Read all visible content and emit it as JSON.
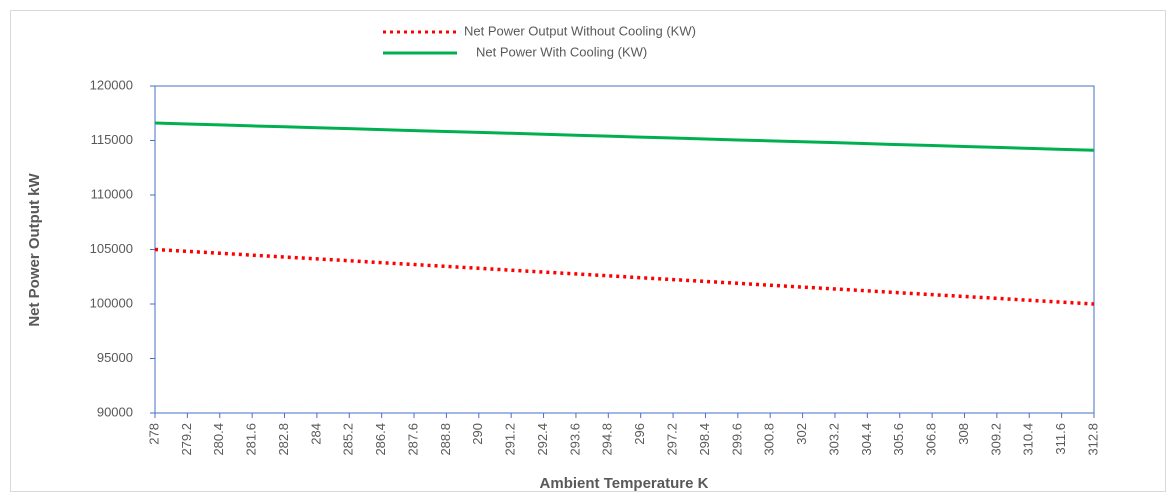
{
  "chart_data": {
    "type": "line",
    "x_label": "Ambient Temperature K",
    "y_label": "Net Power Output  kW",
    "categories": [
      "278",
      "279.2",
      "280.4",
      "281.6",
      "282.8",
      "284",
      "285.2",
      "286.4",
      "287.6",
      "288.8",
      "290",
      "291.2",
      "292.4",
      "293.6",
      "294.8",
      "296",
      "297.2",
      "298.4",
      "299.6",
      "300.8",
      "302",
      "303.2",
      "304.4",
      "305.6",
      "306.8",
      "308",
      "309.2",
      "310.4",
      "311.6",
      "312.8"
    ],
    "series": [
      {
        "name": "Net Power Output Without Cooling (KW)",
        "color": "#ff0000",
        "dash": "dotted",
        "values": [
          105000,
          104830,
          104660,
          104480,
          104310,
          104140,
          103970,
          103790,
          103620,
          103450,
          103280,
          103100,
          102930,
          102760,
          102590,
          102410,
          102240,
          102070,
          101900,
          101720,
          101550,
          101380,
          101210,
          101030,
          100860,
          100690,
          100520,
          100340,
          100170,
          100000
        ]
      },
      {
        "name": "Net Power With Cooling (KW)",
        "color": "#00b050",
        "dash": "solid",
        "values": [
          116600,
          116510,
          116430,
          116340,
          116260,
          116170,
          116090,
          116000,
          115910,
          115830,
          115740,
          115660,
          115570,
          115480,
          115400,
          115310,
          115230,
          115140,
          115050,
          114970,
          114880,
          114800,
          114710,
          114620,
          114540,
          114450,
          114370,
          114280,
          114190,
          114100
        ]
      }
    ],
    "ylim": [
      90000,
      120000
    ],
    "yticks": [
      90000,
      95000,
      100000,
      105000,
      110000,
      115000,
      120000
    ],
    "legend": "top"
  }
}
